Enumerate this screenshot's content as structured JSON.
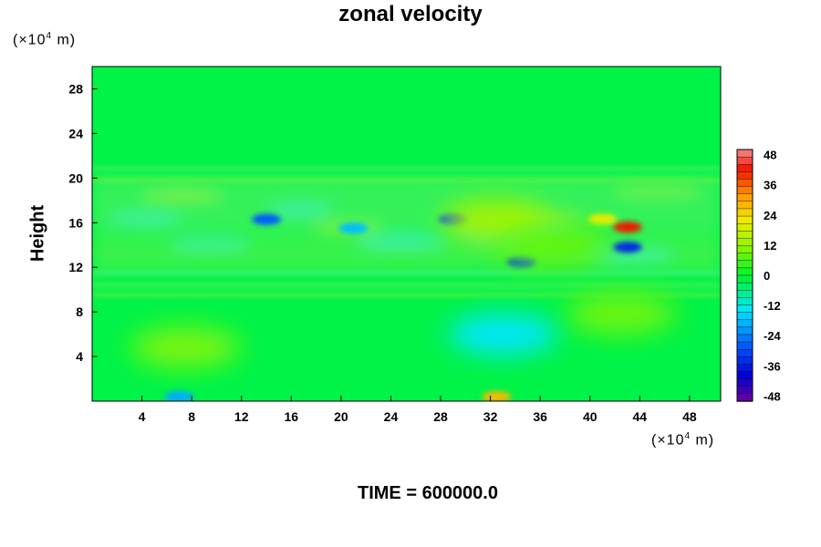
{
  "chart_data": {
    "type": "heatmap",
    "title": "zonal velocity",
    "xlabel": "",
    "ylabel": "Height",
    "x_unit_prefix": "(×10",
    "x_unit_exp": "4",
    "x_unit_suffix": " m)",
    "y_unit_prefix": "(×10",
    "y_unit_exp": "4",
    "y_unit_suffix": " m)",
    "xlim": [
      0,
      50.5
    ],
    "ylim": [
      0,
      30
    ],
    "x_ticks": [
      "4",
      "8",
      "12",
      "16",
      "20",
      "24",
      "28",
      "32",
      "36",
      "40",
      "44",
      "48"
    ],
    "y_ticks": [
      "4",
      "8",
      "12",
      "16",
      "20",
      "24",
      "28"
    ],
    "colorbar": {
      "range": [
        -50,
        50
      ],
      "ticks": [
        "48",
        "36",
        "24",
        "12",
        "0",
        "-12",
        "-24",
        "-36",
        "-48"
      ],
      "levels": 34
    },
    "features": [
      {
        "x": 14,
        "y": 16.3,
        "value": -28
      },
      {
        "x": 21,
        "y": 15.5,
        "value": -18
      },
      {
        "x": 29,
        "y": 16.3,
        "value": -30
      },
      {
        "x": 34.5,
        "y": 12.5,
        "value": -32
      },
      {
        "x": 43,
        "y": 13.8,
        "value": -35
      },
      {
        "x": 43,
        "y": 15.6,
        "value": 42
      },
      {
        "x": 41,
        "y": 16.3,
        "value": 22
      },
      {
        "x": 32.5,
        "y": 16.2,
        "value": 14
      },
      {
        "x": 37,
        "y": 14,
        "value": 8
      },
      {
        "x": 7.5,
        "y": 4.8,
        "value": 10
      },
      {
        "x": 42.5,
        "y": 7.8,
        "value": 9
      },
      {
        "x": 33,
        "y": 6,
        "value": -14
      },
      {
        "x": 7,
        "y": 0.4,
        "value": -20
      },
      {
        "x": 32.5,
        "y": 0.4,
        "value": 28
      }
    ],
    "background_value": -2
  },
  "footer": "TIME = 600000.0"
}
